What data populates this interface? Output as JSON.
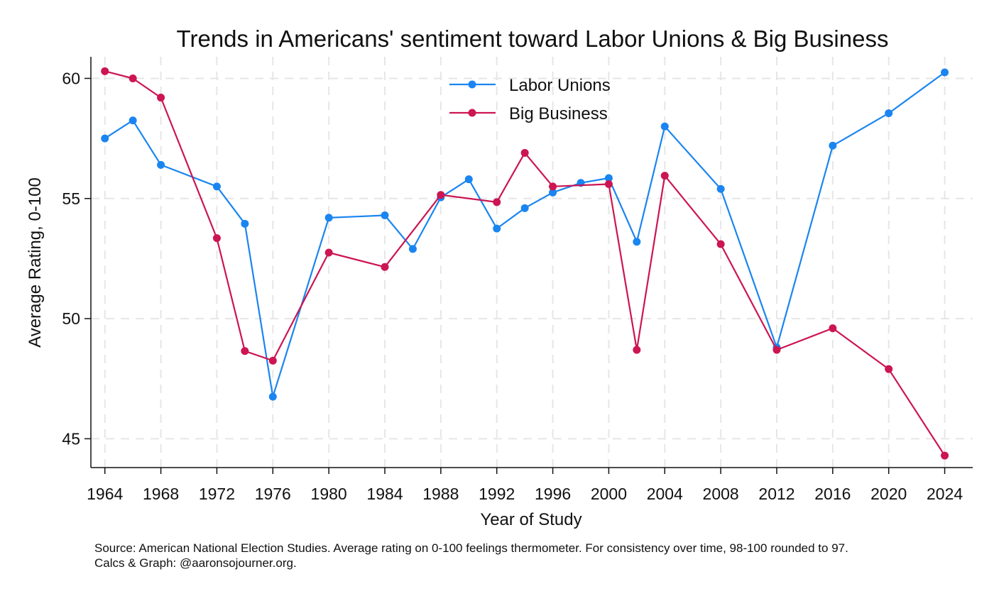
{
  "chart_data": {
    "type": "line",
    "title": "Trends in Americans' sentiment toward Labor Unions & Big Business",
    "xlabel": "Year of Study",
    "ylabel": "Average Rating, 0-100",
    "xlim": [
      1963,
      2026
    ],
    "ylim": [
      43.8,
      60.9
    ],
    "xticks": [
      "1964",
      "1968",
      "1972",
      "1976",
      "1980",
      "1984",
      "1988",
      "1992",
      "1996",
      "2000",
      "2004",
      "2008",
      "2012",
      "2016",
      "2020",
      "2024"
    ],
    "yticks": [
      "45",
      "50",
      "55",
      "60"
    ],
    "grid": true,
    "legend_position": "top-center",
    "series": [
      {
        "name": "Labor Unions",
        "color": "#1a85f0",
        "x": [
          1964,
          1966,
          1968,
          1972,
          1974,
          1976,
          1980,
          1984,
          1986,
          1988,
          1990,
          1992,
          1994,
          1996,
          1998,
          2000,
          2002,
          2004,
          2008,
          2012,
          2016,
          2020,
          2024
        ],
        "y": [
          57.5,
          58.25,
          56.4,
          55.5,
          53.95,
          46.75,
          54.2,
          54.3,
          52.9,
          55.05,
          55.8,
          53.75,
          54.6,
          55.25,
          55.65,
          55.85,
          53.2,
          58.0,
          55.4,
          48.8,
          57.2,
          58.55,
          60.25
        ]
      },
      {
        "name": "Big Business",
        "color": "#cc1551",
        "x": [
          1964,
          1966,
          1968,
          1972,
          1974,
          1976,
          1980,
          1984,
          1988,
          1992,
          1994,
          1996,
          2000,
          2002,
          2004,
          2008,
          2012,
          2016,
          2020,
          2024
        ],
        "y": [
          60.3,
          60.0,
          59.2,
          53.35,
          48.65,
          48.25,
          52.75,
          52.15,
          55.15,
          54.85,
          56.9,
          55.5,
          55.6,
          48.7,
          55.95,
          53.1,
          48.7,
          49.6,
          47.9,
          44.3
        ]
      }
    ]
  },
  "footer": {
    "source_line": "Source: American National Election Studies. Average rating on 0-100 feelings thermometer. For consistency over time, 98-100 rounded to 97.",
    "credit_line": "Calcs & Graph: @aaronsojourner.org."
  }
}
